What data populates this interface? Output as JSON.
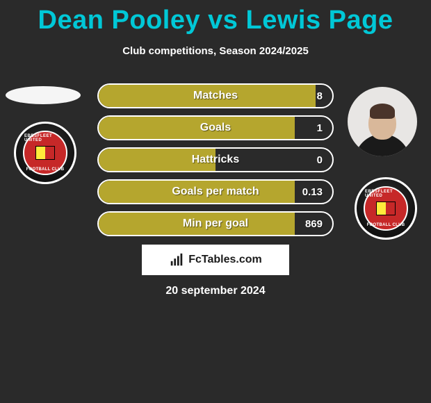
{
  "title": "Dean Pooley vs Lewis Page",
  "subtitle": "Club competitions, Season 2024/2025",
  "title_color": "#00c8d7",
  "background_color": "#2a2a2a",
  "text_color": "#ffffff",
  "bar_fill_color": "#b5a62e",
  "bar_border_color": "#ffffff",
  "club": {
    "name": "Ebbsfleet United",
    "top_text": "EBBSFLEET UNITED",
    "bottom_text": "FOOTBALL CLUB",
    "primary_color": "#c62828",
    "accent_color": "#ffeb3b"
  },
  "stats": [
    {
      "label": "Matches",
      "value": "8",
      "fill_pct": 93
    },
    {
      "label": "Goals",
      "value": "1",
      "fill_pct": 84
    },
    {
      "label": "Hattricks",
      "value": "0",
      "fill_pct": 50
    },
    {
      "label": "Goals per match",
      "value": "0.13",
      "fill_pct": 84
    },
    {
      "label": "Min per goal",
      "value": "869",
      "fill_pct": 84
    }
  ],
  "brand": "FcTables.com",
  "date": "20 september 2024",
  "fonts": {
    "title_size_pt": 29,
    "subtitle_size_pt": 11,
    "bar_label_size_pt": 12
  }
}
